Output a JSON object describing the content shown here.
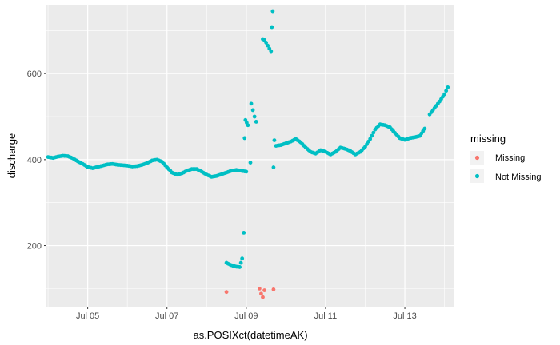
{
  "chart_data": {
    "type": "scatter",
    "xlabel": "as.POSIXct(datetimeAK)",
    "ylabel": "discharge",
    "x_unit": "date (July)",
    "xlim": [
      "2023-07-03T23:00",
      "2023-07-14T06:00"
    ],
    "ylim": [
      58,
      760
    ],
    "x_ticks": [
      {
        "value": "2023-07-05",
        "label": "Jul 05"
      },
      {
        "value": "2023-07-07",
        "label": "Jul 07"
      },
      {
        "value": "2023-07-09",
        "label": "Jul 09"
      },
      {
        "value": "2023-07-11",
        "label": "Jul 11"
      },
      {
        "value": "2023-07-13",
        "label": "Jul 13"
      }
    ],
    "y_ticks": [
      200,
      400,
      600
    ],
    "grid": true,
    "panel_background": "#ebebeb",
    "legend": {
      "title": "missing",
      "position": "right",
      "entries": [
        {
          "label": "Missing",
          "color": "#f8766d"
        },
        {
          "label": "Not Missing",
          "color": "#00bfc4"
        }
      ]
    },
    "series": [
      {
        "name": "Missing",
        "color": "#f8766d",
        "points": [
          [
            "2023-07-08T12:00",
            92
          ],
          [
            "2023-07-09T08:00",
            100
          ],
          [
            "2023-07-09T09:00",
            88
          ],
          [
            "2023-07-09T10:00",
            80
          ],
          [
            "2023-07-09T11:00",
            96
          ],
          [
            "2023-07-09T16:30",
            98
          ]
        ]
      },
      {
        "name": "Not Missing",
        "color": "#00bfc4",
        "points": [
          [
            "2023-07-04T00:00",
            406
          ],
          [
            "2023-07-04T03:00",
            404
          ],
          [
            "2023-07-04T06:00",
            407
          ],
          [
            "2023-07-04T09:00",
            409
          ],
          [
            "2023-07-04T12:00",
            408
          ],
          [
            "2023-07-04T15:00",
            403
          ],
          [
            "2023-07-04T18:00",
            396
          ],
          [
            "2023-07-04T21:00",
            390
          ],
          [
            "2023-07-05T00:00",
            383
          ],
          [
            "2023-07-05T03:00",
            380
          ],
          [
            "2023-07-05T06:00",
            383
          ],
          [
            "2023-07-05T09:00",
            386
          ],
          [
            "2023-07-05T12:00",
            389
          ],
          [
            "2023-07-05T15:00",
            390
          ],
          [
            "2023-07-05T18:00",
            388
          ],
          [
            "2023-07-05T21:00",
            387
          ],
          [
            "2023-07-06T00:00",
            386
          ],
          [
            "2023-07-06T03:00",
            384
          ],
          [
            "2023-07-06T06:00",
            385
          ],
          [
            "2023-07-06T09:00",
            388
          ],
          [
            "2023-07-06T12:00",
            392
          ],
          [
            "2023-07-06T15:00",
            398
          ],
          [
            "2023-07-06T18:00",
            400
          ],
          [
            "2023-07-06T21:00",
            395
          ],
          [
            "2023-07-07T00:00",
            382
          ],
          [
            "2023-07-07T03:00",
            370
          ],
          [
            "2023-07-07T06:00",
            365
          ],
          [
            "2023-07-07T09:00",
            368
          ],
          [
            "2023-07-07T12:00",
            374
          ],
          [
            "2023-07-07T15:00",
            378
          ],
          [
            "2023-07-07T18:00",
            378
          ],
          [
            "2023-07-07T21:00",
            372
          ],
          [
            "2023-07-08T00:00",
            365
          ],
          [
            "2023-07-08T03:00",
            360
          ],
          [
            "2023-07-08T06:00",
            362
          ],
          [
            "2023-07-08T09:00",
            366
          ],
          [
            "2023-07-08T12:00",
            370
          ],
          [
            "2023-07-08T15:00",
            374
          ],
          [
            "2023-07-08T18:00",
            376
          ],
          [
            "2023-07-08T21:00",
            374
          ],
          [
            "2023-07-09T00:00",
            372
          ],
          [
            "2023-07-08T12:00",
            160
          ],
          [
            "2023-07-08T14:00",
            156
          ],
          [
            "2023-07-08T16:00",
            153
          ],
          [
            "2023-07-08T18:00",
            151
          ],
          [
            "2023-07-08T20:00",
            150
          ],
          [
            "2023-07-08T21:30",
            170
          ],
          [
            "2023-07-08T22:30",
            230
          ],
          [
            "2023-07-08T23:00",
            450
          ],
          [
            "2023-07-08T23:30",
            492
          ],
          [
            "2023-07-09T01:00",
            480
          ],
          [
            "2023-07-09T02:30",
            393
          ],
          [
            "2023-07-09T03:00",
            530
          ],
          [
            "2023-07-09T04:00",
            515
          ],
          [
            "2023-07-09T05:00",
            500
          ],
          [
            "2023-07-09T06:00",
            488
          ],
          [
            "2023-07-09T10:00",
            680
          ],
          [
            "2023-07-09T11:00",
            678
          ],
          [
            "2023-07-09T12:00",
            672
          ],
          [
            "2023-07-09T13:00",
            665
          ],
          [
            "2023-07-09T14:00",
            658
          ],
          [
            "2023-07-09T15:00",
            652
          ],
          [
            "2023-07-09T15:30",
            708
          ],
          [
            "2023-07-09T16:00",
            745
          ],
          [
            "2023-07-09T16:30",
            382
          ],
          [
            "2023-07-09T17:00",
            445
          ],
          [
            "2023-07-09T18:00",
            432
          ],
          [
            "2023-07-09T21:00",
            434
          ],
          [
            "2023-07-10T00:00",
            438
          ],
          [
            "2023-07-10T03:00",
            442
          ],
          [
            "2023-07-10T06:00",
            448
          ],
          [
            "2023-07-10T09:00",
            440
          ],
          [
            "2023-07-10T12:00",
            428
          ],
          [
            "2023-07-10T15:00",
            418
          ],
          [
            "2023-07-10T18:00",
            414
          ],
          [
            "2023-07-10T21:00",
            422
          ],
          [
            "2023-07-11T00:00",
            418
          ],
          [
            "2023-07-11T03:00",
            412
          ],
          [
            "2023-07-11T06:00",
            418
          ],
          [
            "2023-07-11T09:00",
            428
          ],
          [
            "2023-07-11T12:00",
            425
          ],
          [
            "2023-07-11T15:00",
            420
          ],
          [
            "2023-07-11T18:00",
            412
          ],
          [
            "2023-07-11T21:00",
            418
          ],
          [
            "2023-07-12T00:00",
            430
          ],
          [
            "2023-07-12T03:00",
            448
          ],
          [
            "2023-07-12T06:00",
            470
          ],
          [
            "2023-07-12T09:00",
            482
          ],
          [
            "2023-07-12T12:00",
            480
          ],
          [
            "2023-07-12T15:00",
            475
          ],
          [
            "2023-07-12T18:00",
            462
          ],
          [
            "2023-07-12T21:00",
            450
          ],
          [
            "2023-07-13T00:00",
            446
          ],
          [
            "2023-07-13T03:00",
            450
          ],
          [
            "2023-07-13T06:00",
            452
          ],
          [
            "2023-07-13T09:00",
            455
          ],
          [
            "2023-07-13T12:00",
            472
          ],
          [
            "2023-07-13T15:00",
            505
          ],
          [
            "2023-07-13T18:00",
            520
          ],
          [
            "2023-07-13T21:00",
            535
          ],
          [
            "2023-07-14T00:00",
            552
          ],
          [
            "2023-07-14T01:00",
            560
          ],
          [
            "2023-07-14T02:00",
            568
          ]
        ]
      }
    ]
  }
}
